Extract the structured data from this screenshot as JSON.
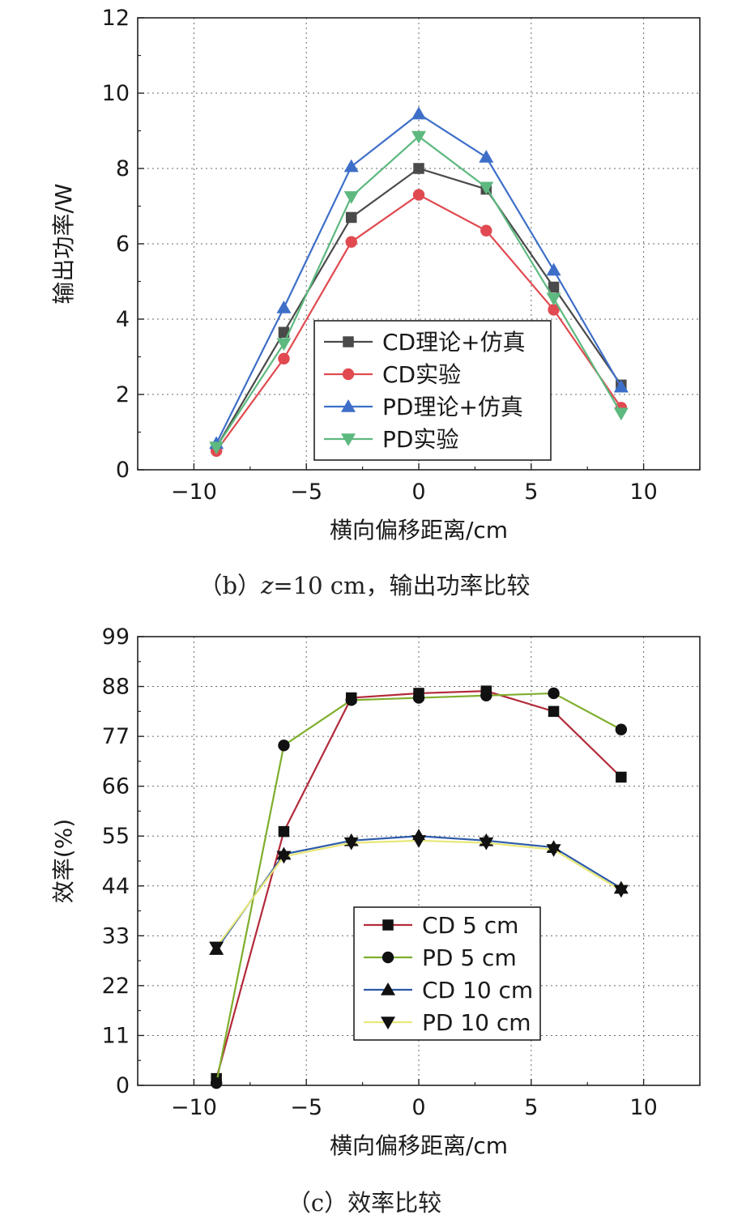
{
  "chart_data": [
    {
      "type": "line",
      "xlabel": "横向偏移距离/cm",
      "ylabel": "输出功率/W",
      "xlim": [
        -12.5,
        12.5
      ],
      "ylim": [
        0,
        12
      ],
      "xticks": [
        -10,
        -5,
        0,
        5,
        10
      ],
      "xtick_labels": [
        "−10",
        "−5",
        "0",
        "5",
        "10"
      ],
      "yticks": [
        0,
        2,
        4,
        6,
        8,
        10,
        12
      ],
      "ytick_labels": [
        "0",
        "2",
        "4",
        "6",
        "8",
        "10",
        "12"
      ],
      "grid": true,
      "legend_position": "bottom-right",
      "x": [
        -9,
        -6,
        -3,
        0,
        3,
        6,
        9
      ],
      "series": [
        {
          "name": "CD理论+仿真",
          "values": [
            0.6,
            3.65,
            6.7,
            8.0,
            7.45,
            4.85,
            2.25
          ],
          "color": "#4a4a4a",
          "marker": "square"
        },
        {
          "name": "CD实验",
          "values": [
            0.5,
            2.95,
            6.05,
            7.3,
            6.35,
            4.25,
            1.65
          ],
          "color": "#e04a50",
          "marker": "circle"
        },
        {
          "name": "PD理论+仿真",
          "values": [
            0.7,
            4.3,
            8.05,
            9.45,
            8.3,
            5.3,
            2.2
          ],
          "color": "#3e6fc8",
          "marker": "triangle-up"
        },
        {
          "name": "PD实验",
          "values": [
            0.6,
            3.35,
            7.25,
            8.85,
            7.5,
            4.55,
            1.5
          ],
          "color": "#5db97f",
          "marker": "triangle-down"
        }
      ],
      "caption": {
        "prefix": "（b）",
        "var": "z",
        "rest": "=10 cm，输出功率比较"
      }
    },
    {
      "type": "line",
      "xlabel": "横向偏移距离/cm",
      "ylabel": "效率(%)",
      "xlim": [
        -12.5,
        12.5
      ],
      "ylim": [
        0,
        99
      ],
      "xticks": [
        -10,
        -5,
        0,
        5,
        10
      ],
      "xtick_labels": [
        "−10",
        "−5",
        "0",
        "5",
        "10"
      ],
      "yticks": [
        0,
        11,
        22,
        33,
        44,
        55,
        66,
        77,
        88,
        99
      ],
      "ytick_labels": [
        "0",
        "11",
        "22",
        "33",
        "44",
        "55",
        "66",
        "77",
        "88",
        "99"
      ],
      "grid": true,
      "legend_position": "bottom-right",
      "x": [
        -9,
        -6,
        -3,
        0,
        3,
        6,
        9
      ],
      "series": [
        {
          "name": "CD 5 cm",
          "values": [
            1.5,
            56,
            85.5,
            86.5,
            87,
            82.5,
            68
          ],
          "color": "#b22a3a",
          "marker": "square"
        },
        {
          "name": "PD 5 cm",
          "values": [
            0.5,
            75,
            85,
            85.5,
            86,
            86.5,
            78.5
          ],
          "color": "#7fae2e",
          "marker": "circle"
        },
        {
          "name": "CD 10 cm",
          "values": [
            30,
            51,
            54,
            55,
            54,
            52.5,
            43.5
          ],
          "color": "#2c5aa8",
          "marker": "triangle-up"
        },
        {
          "name": "PD 10 cm",
          "values": [
            30.5,
            50.5,
            53.5,
            54,
            53.5,
            52,
            43
          ],
          "color": "#e8e87a",
          "marker": "triangle-down"
        }
      ],
      "caption": {
        "prefix": "（c）",
        "var": "",
        "rest": "效率比较"
      }
    }
  ]
}
